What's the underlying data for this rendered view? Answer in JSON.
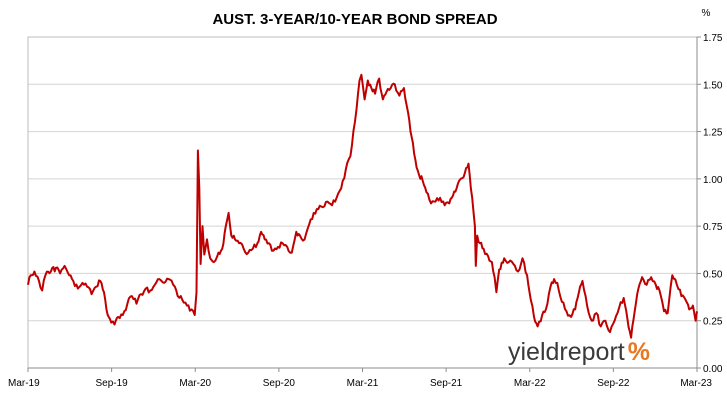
{
  "chart_data": {
    "type": "line",
    "title": "AUST. 3-YEAR/10-YEAR BOND SPREAD",
    "ylabel": "%",
    "xlabel": "",
    "xlim": [
      "2019-03-01",
      "2023-03-01"
    ],
    "ylim": [
      0,
      1.75
    ],
    "y_ticks": [
      "0.00",
      "0.25",
      "0.50",
      "0.75",
      "1.00",
      "1.25",
      "1.50",
      "1.75"
    ],
    "x_ticks": [
      "Mar-19",
      "Sep-19",
      "Mar-20",
      "Sep-20",
      "Mar-21",
      "Sep-21",
      "Mar-22",
      "Sep-22",
      "Mar-23"
    ],
    "grid": true,
    "legend": "none",
    "series": [
      {
        "color": "#c00000",
        "points": [
          [
            "2019-03-01",
            0.44
          ],
          [
            "2019-03-07",
            0.49
          ],
          [
            "2019-03-15",
            0.51
          ],
          [
            "2019-03-25",
            0.46
          ],
          [
            "2019-04-01",
            0.41
          ],
          [
            "2019-04-08",
            0.49
          ],
          [
            "2019-04-20",
            0.51
          ],
          [
            "2019-05-01",
            0.53
          ],
          [
            "2019-05-10",
            0.5
          ],
          [
            "2019-05-20",
            0.54
          ],
          [
            "2019-05-30",
            0.49
          ],
          [
            "2019-06-08",
            0.46
          ],
          [
            "2019-06-18",
            0.42
          ],
          [
            "2019-06-28",
            0.45
          ],
          [
            "2019-07-08",
            0.43
          ],
          [
            "2019-07-18",
            0.39
          ],
          [
            "2019-07-28",
            0.43
          ],
          [
            "2019-08-06",
            0.46
          ],
          [
            "2019-08-14",
            0.4
          ],
          [
            "2019-08-22",
            0.28
          ],
          [
            "2019-08-30",
            0.24
          ],
          [
            "2019-09-06",
            0.23
          ],
          [
            "2019-09-14",
            0.27
          ],
          [
            "2019-09-24",
            0.28
          ],
          [
            "2019-10-04",
            0.34
          ],
          [
            "2019-10-14",
            0.38
          ],
          [
            "2019-10-24",
            0.34
          ],
          [
            "2019-11-03",
            0.39
          ],
          [
            "2019-11-13",
            0.42
          ],
          [
            "2019-11-23",
            0.41
          ],
          [
            "2019-12-03",
            0.44
          ],
          [
            "2019-12-13",
            0.47
          ],
          [
            "2019-12-23",
            0.45
          ],
          [
            "2020-01-02",
            0.47
          ],
          [
            "2020-01-12",
            0.44
          ],
          [
            "2020-01-22",
            0.38
          ],
          [
            "2020-02-01",
            0.36
          ],
          [
            "2020-02-11",
            0.33
          ],
          [
            "2020-02-21",
            0.31
          ],
          [
            "2020-02-28",
            0.28
          ],
          [
            "2020-03-03",
            0.4
          ],
          [
            "2020-03-06",
            1.15
          ],
          [
            "2020-03-09",
            0.95
          ],
          [
            "2020-03-12",
            0.55
          ],
          [
            "2020-03-16",
            0.75
          ],
          [
            "2020-03-20",
            0.6
          ],
          [
            "2020-03-26",
            0.68
          ],
          [
            "2020-04-02",
            0.58
          ],
          [
            "2020-04-10",
            0.56
          ],
          [
            "2020-04-20",
            0.61
          ],
          [
            "2020-04-28",
            0.63
          ],
          [
            "2020-05-06",
            0.75
          ],
          [
            "2020-05-12",
            0.82
          ],
          [
            "2020-05-18",
            0.7
          ],
          [
            "2020-05-26",
            0.68
          ],
          [
            "2020-06-04",
            0.66
          ],
          [
            "2020-06-14",
            0.63
          ],
          [
            "2020-06-24",
            0.61
          ],
          [
            "2020-07-04",
            0.63
          ],
          [
            "2020-07-14",
            0.66
          ],
          [
            "2020-07-22",
            0.72
          ],
          [
            "2020-07-30",
            0.68
          ],
          [
            "2020-08-08",
            0.66
          ],
          [
            "2020-08-18",
            0.62
          ],
          [
            "2020-08-28",
            0.64
          ],
          [
            "2020-09-07",
            0.66
          ],
          [
            "2020-09-17",
            0.64
          ],
          [
            "2020-09-27",
            0.61
          ],
          [
            "2020-10-07",
            0.72
          ],
          [
            "2020-10-15",
            0.7
          ],
          [
            "2020-10-25",
            0.68
          ],
          [
            "2020-11-04",
            0.76
          ],
          [
            "2020-11-14",
            0.82
          ],
          [
            "2020-11-24",
            0.84
          ],
          [
            "2020-12-04",
            0.85
          ],
          [
            "2020-12-14",
            0.88
          ],
          [
            "2020-12-24",
            0.86
          ],
          [
            "2021-01-03",
            0.9
          ],
          [
            "2021-01-13",
            0.95
          ],
          [
            "2021-01-23",
            1.05
          ],
          [
            "2021-02-02",
            1.12
          ],
          [
            "2021-02-12",
            1.3
          ],
          [
            "2021-02-22",
            1.52
          ],
          [
            "2021-02-26",
            1.55
          ],
          [
            "2021-03-05",
            1.42
          ],
          [
            "2021-03-12",
            1.52
          ],
          [
            "2021-03-20",
            1.48
          ],
          [
            "2021-03-28",
            1.45
          ],
          [
            "2021-04-06",
            1.53
          ],
          [
            "2021-04-14",
            1.42
          ],
          [
            "2021-04-22",
            1.46
          ],
          [
            "2021-05-01",
            1.48
          ],
          [
            "2021-05-10",
            1.5
          ],
          [
            "2021-05-20",
            1.44
          ],
          [
            "2021-05-30",
            1.48
          ],
          [
            "2021-06-08",
            1.35
          ],
          [
            "2021-06-16",
            1.22
          ],
          [
            "2021-06-24",
            1.1
          ],
          [
            "2021-07-02",
            1.02
          ],
          [
            "2021-07-10",
            0.99
          ],
          [
            "2021-07-18",
            0.93
          ],
          [
            "2021-07-28",
            0.87
          ],
          [
            "2021-08-07",
            0.88
          ],
          [
            "2021-08-17",
            0.9
          ],
          [
            "2021-08-27",
            0.86
          ],
          [
            "2021-09-06",
            0.87
          ],
          [
            "2021-09-14",
            0.91
          ],
          [
            "2021-09-22",
            0.95
          ],
          [
            "2021-10-01",
            1.0
          ],
          [
            "2021-10-10",
            1.03
          ],
          [
            "2021-10-18",
            1.08
          ],
          [
            "2021-10-26",
            0.9
          ],
          [
            "2021-11-01",
            0.75
          ],
          [
            "2021-11-03",
            0.54
          ],
          [
            "2021-11-06",
            0.7
          ],
          [
            "2021-11-12",
            0.66
          ],
          [
            "2021-11-20",
            0.63
          ],
          [
            "2021-11-30",
            0.59
          ],
          [
            "2021-12-08",
            0.56
          ],
          [
            "2021-12-14",
            0.48
          ],
          [
            "2021-12-18",
            0.4
          ],
          [
            "2021-12-24",
            0.52
          ],
          [
            "2022-01-04",
            0.58
          ],
          [
            "2022-01-14",
            0.56
          ],
          [
            "2022-01-24",
            0.55
          ],
          [
            "2022-02-03",
            0.51
          ],
          [
            "2022-02-13",
            0.58
          ],
          [
            "2022-02-23",
            0.49
          ],
          [
            "2022-03-03",
            0.36
          ],
          [
            "2022-03-10",
            0.27
          ],
          [
            "2022-03-18",
            0.22
          ],
          [
            "2022-03-28",
            0.28
          ],
          [
            "2022-04-05",
            0.31
          ],
          [
            "2022-04-15",
            0.43
          ],
          [
            "2022-04-23",
            0.47
          ],
          [
            "2022-04-30",
            0.45
          ],
          [
            "2022-05-10",
            0.35
          ],
          [
            "2022-05-20",
            0.3
          ],
          [
            "2022-05-30",
            0.27
          ],
          [
            "2022-06-08",
            0.31
          ],
          [
            "2022-06-16",
            0.4
          ],
          [
            "2022-06-24",
            0.46
          ],
          [
            "2022-07-04",
            0.33
          ],
          [
            "2022-07-14",
            0.25
          ],
          [
            "2022-07-24",
            0.29
          ],
          [
            "2022-08-03",
            0.22
          ],
          [
            "2022-08-13",
            0.25
          ],
          [
            "2022-08-23",
            0.19
          ],
          [
            "2022-09-02",
            0.25
          ],
          [
            "2022-09-12",
            0.32
          ],
          [
            "2022-09-22",
            0.37
          ],
          [
            "2022-09-30",
            0.26
          ],
          [
            "2022-10-08",
            0.16
          ],
          [
            "2022-10-16",
            0.3
          ],
          [
            "2022-10-24",
            0.42
          ],
          [
            "2022-11-01",
            0.48
          ],
          [
            "2022-11-11",
            0.44
          ],
          [
            "2022-11-21",
            0.48
          ],
          [
            "2022-12-01",
            0.44
          ],
          [
            "2022-12-09",
            0.41
          ],
          [
            "2022-12-19",
            0.3
          ],
          [
            "2022-12-27",
            0.29
          ],
          [
            "2023-01-06",
            0.49
          ],
          [
            "2023-01-16",
            0.44
          ],
          [
            "2023-01-26",
            0.38
          ],
          [
            "2023-02-04",
            0.36
          ],
          [
            "2023-02-12",
            0.31
          ],
          [
            "2023-02-20",
            0.33
          ],
          [
            "2023-02-26",
            0.25
          ],
          [
            "2023-03-01",
            0.3
          ]
        ]
      }
    ]
  },
  "watermark": {
    "brand_main": "yieldreport",
    "brand_symbol": "%",
    "text_color": "#3a3a3a",
    "symbol_color": "#e87722"
  }
}
